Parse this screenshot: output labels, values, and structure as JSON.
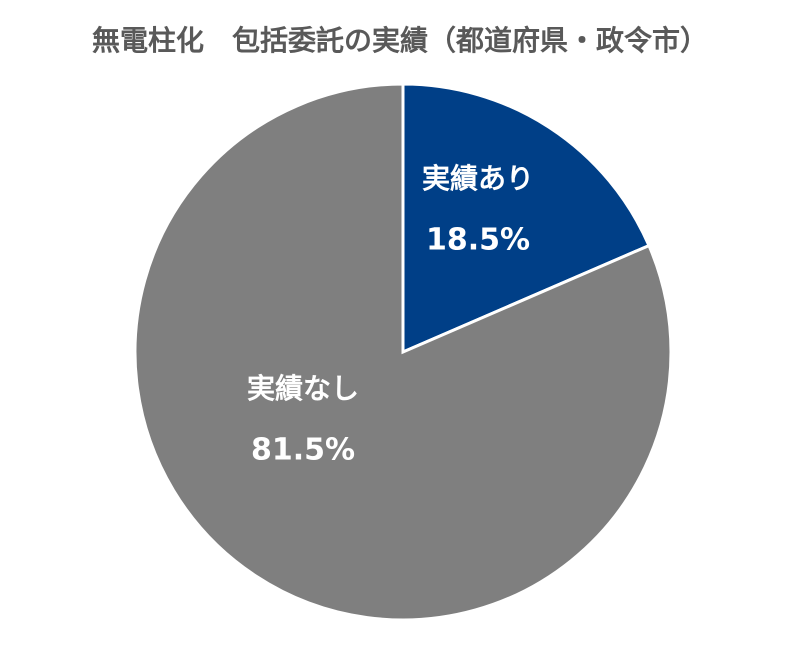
{
  "chart_data": {
    "type": "pie",
    "title": "無電柱化　包括委託の実績（都道府県・政令市）",
    "categories": [
      "実績あり",
      "実績なし"
    ],
    "values": [
      18.5,
      81.5
    ],
    "value_labels": [
      "18.5%",
      "81.5%"
    ],
    "colors": [
      "#003f87",
      "#7f7f7f"
    ]
  }
}
